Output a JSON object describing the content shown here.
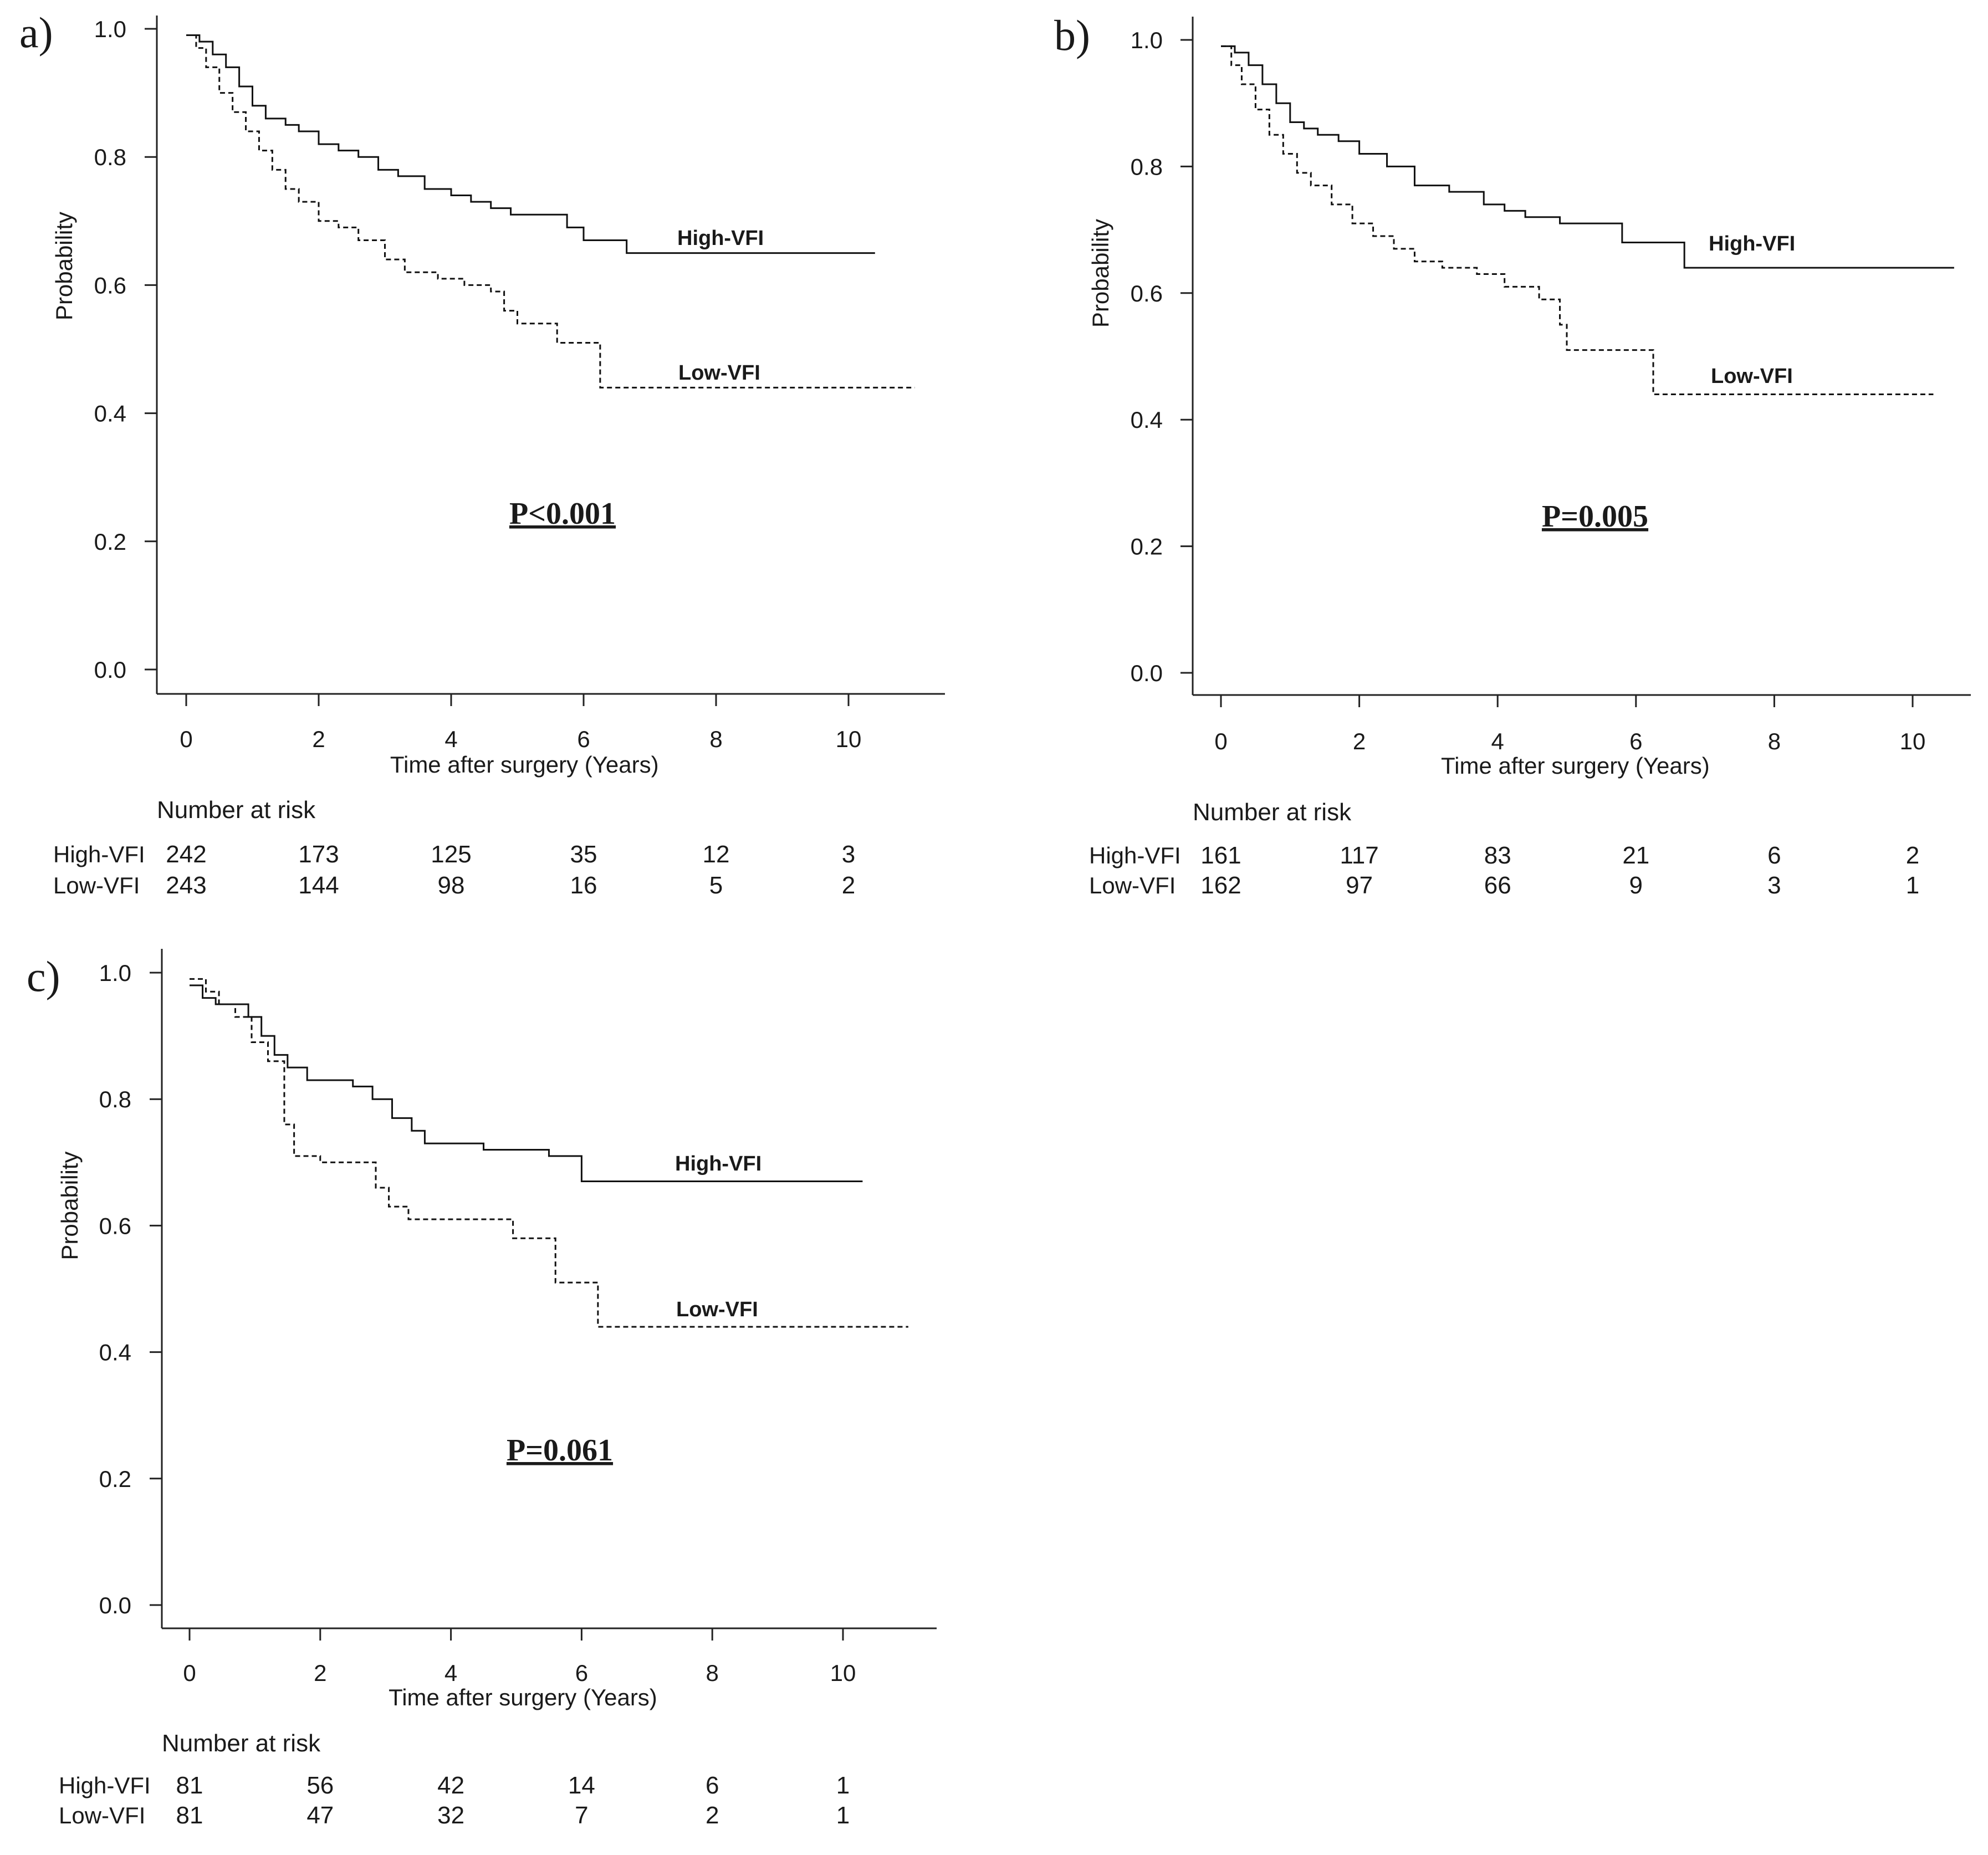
{
  "chart_data": [
    {
      "id": "a",
      "type": "line",
      "panel_label": "a)",
      "subtype": "kaplan-meier",
      "xlabel": "Time after surgery (Years)",
      "ylabel": "Probability",
      "xlim": [
        0,
        11
      ],
      "ylim": [
        0,
        1
      ],
      "xticks": [
        0,
        2,
        4,
        6,
        8,
        10
      ],
      "yticks": [
        0.0,
        0.2,
        0.4,
        0.6,
        0.8,
        1.0
      ],
      "xtick_labels": [
        "0",
        "2",
        "4",
        "6",
        "8",
        "10"
      ],
      "ytick_labels": [
        "0.0",
        "0.2",
        "0.4",
        "0.6",
        "0.8",
        "1.0"
      ],
      "p_value": "P<0.001",
      "series": [
        {
          "name": "High-VFI",
          "style": "solid",
          "x": [
            0,
            0.2,
            0.4,
            0.6,
            0.8,
            1.0,
            1.2,
            1.5,
            1.7,
            2.0,
            2.3,
            2.6,
            2.9,
            3.2,
            3.6,
            4.0,
            4.3,
            4.6,
            4.9,
            5.5,
            5.75,
            6.0,
            6.65,
            10.4
          ],
          "y": [
            0.99,
            0.98,
            0.96,
            0.94,
            0.91,
            0.88,
            0.86,
            0.85,
            0.84,
            0.82,
            0.81,
            0.8,
            0.78,
            0.77,
            0.75,
            0.74,
            0.73,
            0.72,
            0.71,
            0.71,
            0.69,
            0.67,
            0.65,
            0.65
          ]
        },
        {
          "name": "Low-VFI",
          "style": "dashed",
          "x": [
            0,
            0.15,
            0.3,
            0.5,
            0.7,
            0.9,
            1.1,
            1.3,
            1.5,
            1.7,
            2.0,
            2.3,
            2.6,
            3.0,
            3.3,
            3.8,
            4.2,
            4.6,
            4.8,
            5.0,
            5.6,
            6.25,
            11.0
          ],
          "y": [
            0.99,
            0.97,
            0.94,
            0.9,
            0.87,
            0.84,
            0.81,
            0.78,
            0.75,
            0.73,
            0.7,
            0.69,
            0.67,
            0.64,
            0.62,
            0.61,
            0.6,
            0.59,
            0.56,
            0.54,
            0.51,
            0.44,
            0.44
          ]
        }
      ],
      "risk_table": {
        "title": "Number at risk",
        "rows": [
          {
            "label": "High-VFI",
            "values": [
              "242",
              "173",
              "125",
              "35",
              "12",
              "3"
            ]
          },
          {
            "label": "Low-VFI",
            "values": [
              "243",
              "144",
              "98",
              "16",
              "5",
              "2"
            ]
          }
        ]
      }
    },
    {
      "id": "b",
      "type": "line",
      "panel_label": "b)",
      "subtype": "kaplan-meier",
      "xlabel": "Time after surgery (Years)",
      "ylabel": "Probability",
      "xlim": [
        0,
        11
      ],
      "ylim": [
        0,
        1
      ],
      "xticks": [
        0,
        2,
        4,
        6,
        8,
        10
      ],
      "yticks": [
        0.0,
        0.2,
        0.4,
        0.6,
        0.8,
        1.0
      ],
      "xtick_labels": [
        "0",
        "2",
        "4",
        "6",
        "8",
        "10"
      ],
      "ytick_labels": [
        "0.0",
        "0.2",
        "0.4",
        "0.6",
        "0.8",
        "1.0"
      ],
      "p_value": "P=0.005",
      "series": [
        {
          "name": "High-VFI",
          "style": "solid",
          "x": [
            0,
            0.2,
            0.4,
            0.6,
            0.8,
            1.0,
            1.2,
            1.4,
            1.7,
            2.0,
            2.4,
            2.8,
            3.3,
            3.8,
            4.1,
            4.4,
            4.9,
            5.8,
            6.7,
            10.6
          ],
          "y": [
            0.99,
            0.98,
            0.96,
            0.93,
            0.9,
            0.87,
            0.86,
            0.85,
            0.84,
            0.82,
            0.8,
            0.77,
            0.76,
            0.74,
            0.73,
            0.72,
            0.71,
            0.68,
            0.64,
            0.64
          ]
        },
        {
          "name": "Low-VFI",
          "style": "dashed",
          "x": [
            0,
            0.15,
            0.3,
            0.5,
            0.7,
            0.9,
            1.1,
            1.3,
            1.6,
            1.9,
            2.2,
            2.5,
            2.8,
            3.2,
            3.7,
            4.1,
            4.6,
            4.9,
            5.0,
            6.25,
            10.3
          ],
          "y": [
            0.99,
            0.96,
            0.93,
            0.89,
            0.85,
            0.82,
            0.79,
            0.77,
            0.74,
            0.71,
            0.69,
            0.67,
            0.65,
            0.64,
            0.63,
            0.61,
            0.59,
            0.55,
            0.51,
            0.44,
            0.44
          ]
        }
      ],
      "risk_table": {
        "title": "Number at risk",
        "rows": [
          {
            "label": "High-VFI",
            "values": [
              "161",
              "117",
              "83",
              "21",
              "6",
              "2"
            ]
          },
          {
            "label": "Low-VFI",
            "values": [
              "162",
              "97",
              "66",
              "9",
              "3",
              "1"
            ]
          }
        ]
      }
    },
    {
      "id": "c",
      "type": "line",
      "panel_label": "c)",
      "subtype": "kaplan-meier",
      "xlabel": "Time after surgery (Years)",
      "ylabel": "Probability",
      "xlim": [
        0,
        11
      ],
      "ylim": [
        0,
        1
      ],
      "xticks": [
        0,
        2,
        4,
        6,
        8,
        10
      ],
      "yticks": [
        0.0,
        0.2,
        0.4,
        0.6,
        0.8,
        1.0
      ],
      "xtick_labels": [
        "0",
        "2",
        "4",
        "6",
        "8",
        "10"
      ],
      "ytick_labels": [
        "0.0",
        "0.2",
        "0.4",
        "0.6",
        "0.8",
        "1.0"
      ],
      "p_value": "P=0.061",
      "series": [
        {
          "name": "High-VFI",
          "style": "solid",
          "x": [
            0,
            0.2,
            0.4,
            0.9,
            1.1,
            1.3,
            1.5,
            1.8,
            2.5,
            2.8,
            3.1,
            3.4,
            3.6,
            4.5,
            5.5,
            6.0,
            10.3
          ],
          "y": [
            0.98,
            0.96,
            0.95,
            0.93,
            0.9,
            0.87,
            0.85,
            0.83,
            0.82,
            0.8,
            0.77,
            0.75,
            0.73,
            0.72,
            0.71,
            0.67,
            0.67
          ]
        },
        {
          "name": "Low-VFI",
          "style": "dashed",
          "x": [
            0,
            0.25,
            0.45,
            0.7,
            0.95,
            1.2,
            1.45,
            1.6,
            2.0,
            2.85,
            3.05,
            3.35,
            4.95,
            5.6,
            6.25,
            11.0
          ],
          "y": [
            0.99,
            0.97,
            0.95,
            0.93,
            0.89,
            0.86,
            0.76,
            0.71,
            0.7,
            0.66,
            0.63,
            0.61,
            0.58,
            0.51,
            0.44,
            0.44
          ]
        }
      ],
      "risk_table": {
        "title": "Number at risk",
        "rows": [
          {
            "label": "High-VFI",
            "values": [
              "81",
              "56",
              "42",
              "14",
              "6",
              "1"
            ]
          },
          {
            "label": "Low-VFI",
            "values": [
              "81",
              "47",
              "32",
              "7",
              "2",
              "1"
            ]
          }
        ]
      }
    }
  ]
}
